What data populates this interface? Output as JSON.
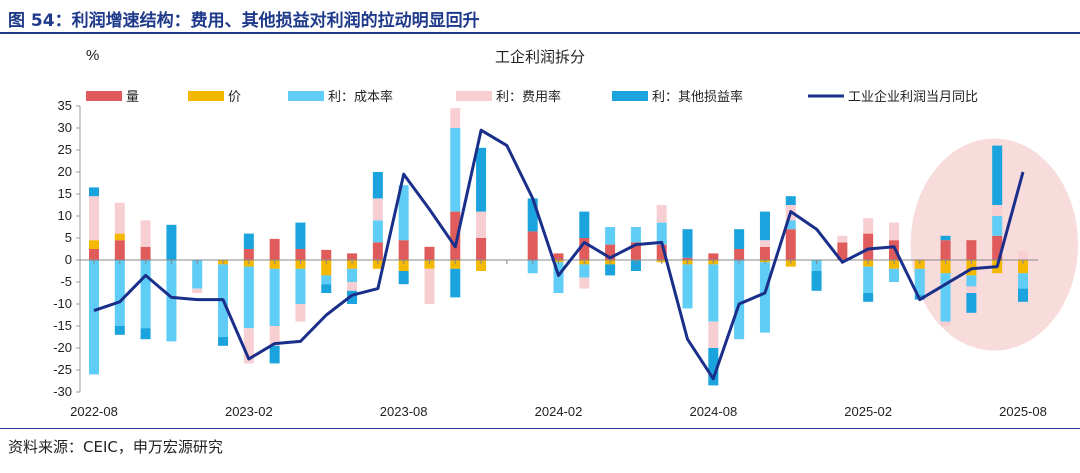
{
  "figure": {
    "title": "图 54：利润增速结构：费用、其他损益对利润的拉动明显回升",
    "source": "资料来源：CEIC，申万宏源研究"
  },
  "colors": {
    "volume": "#e05c5c",
    "price": "#f5b800",
    "cost_rate": "#5fcdf5",
    "expense_rate": "#f7cfd3",
    "other_income": "#1aa3dd",
    "total_line": "#1a2f8a",
    "highlight": "#f6d0d0"
  },
  "chart_data": {
    "type": "bar",
    "stacked": true,
    "title": "工企利润拆分",
    "ylabel": "%",
    "ylim": [
      -30,
      35
    ],
    "yticks": [
      35,
      30,
      25,
      20,
      15,
      10,
      5,
      0,
      -5,
      -10,
      -15,
      -20,
      -25,
      -30
    ],
    "categories": [
      "2022-08",
      "2022-09",
      "2022-10",
      "2022-11",
      "2022-12",
      "2023-01",
      "2023-02",
      "2023-03",
      "2023-04",
      "2023-05",
      "2023-06",
      "2023-07",
      "2023-08",
      "2023-09",
      "2023-10",
      "2023-11",
      "2023-12",
      "2024-01",
      "2024-02",
      "2024-03",
      "2024-04",
      "2024-05",
      "2024-06",
      "2024-07",
      "2024-08",
      "2024-09",
      "2024-10",
      "2024-11",
      "2024-12",
      "2025-01",
      "2025-02",
      "2025-03",
      "2025-04",
      "2025-05",
      "2025-06",
      "2025-07",
      "2025-08"
    ],
    "xtick_labels": [
      "2022-08",
      "2023-02",
      "2023-08",
      "2024-02",
      "2024-08",
      "2025-02",
      "2025-08"
    ],
    "legend_position": "top",
    "series": [
      {
        "name": "量",
        "color_key": "volume",
        "values": [
          2.5,
          4.5,
          3,
          0,
          0,
          0,
          2.5,
          4.8,
          2.5,
          2.3,
          1.5,
          4,
          4.5,
          3,
          11,
          5,
          0,
          6.5,
          1.5,
          5,
          3.5,
          4,
          3.5,
          0.5,
          1.5,
          2.5,
          3,
          7,
          0,
          4,
          6,
          4.5,
          0,
          4.5,
          4.5,
          5.5,
          0
        ]
      },
      {
        "name": "价",
        "color_key": "price",
        "values": [
          2,
          1.5,
          0,
          0,
          0,
          -1,
          -1.5,
          -2,
          -2,
          -3.5,
          -2,
          -2,
          -2.5,
          -2,
          -2,
          -2.5,
          0,
          0,
          -0.5,
          -1,
          -1,
          0,
          -0.5,
          -1,
          -1,
          0,
          -0.5,
          -1.5,
          0,
          0,
          -1.5,
          -2,
          -2,
          -3,
          -3.5,
          -3,
          -3
        ]
      },
      {
        "name": "利：成本率",
        "color_key": "cost_rate",
        "values": [
          -26,
          -15,
          -15.5,
          -18.5,
          -6.5,
          -16.5,
          -14,
          -13,
          -8,
          -2,
          -3,
          5,
          12.5,
          0,
          19,
          0,
          0,
          -3,
          -7,
          -3,
          4,
          3.5,
          5,
          -10,
          -13,
          -18,
          -16,
          2,
          -2.5,
          0,
          -6,
          -3,
          -6,
          -11,
          -2.5,
          4.5,
          -3.5
        ]
      },
      {
        "name": "利：费用率",
        "color_key": "expense_rate",
        "values": [
          10,
          7,
          6,
          0,
          -1,
          0,
          -8,
          -4.5,
          -4,
          0,
          -2,
          5,
          0,
          -8,
          4.5,
          6,
          0,
          0,
          0,
          -2.5,
          0,
          0,
          4,
          0,
          -6,
          0,
          1.5,
          3.5,
          0,
          1.5,
          3.5,
          4,
          0,
          -1,
          -1.5,
          2.5,
          2
        ]
      },
      {
        "name": "利：其他损益率",
        "color_key": "other_income",
        "values": [
          2,
          -2,
          -2.5,
          8,
          0,
          -2,
          3.5,
          -4,
          6,
          -2,
          -3,
          6,
          -3,
          0,
          -6.5,
          14.5,
          0,
          7.5,
          0,
          6,
          -2.5,
          -2.5,
          0,
          6.5,
          -8.5,
          4.5,
          6.5,
          2,
          -4.5,
          0,
          -2,
          0,
          -1,
          1,
          -4.5,
          13.5,
          -3
        ]
      }
    ],
    "line": {
      "name": "工业企业利润当月同比",
      "color_key": "total_line",
      "values": [
        -11.5,
        -9.5,
        -3.5,
        -8.5,
        -9,
        -9,
        -22.5,
        -19,
        -18.5,
        -12.5,
        -8,
        -6.5,
        19.5,
        11.5,
        3,
        29.5,
        26,
        14,
        -3.5,
        4,
        0.5,
        3.5,
        4,
        -18,
        -27,
        -10,
        -7.5,
        11,
        7,
        -0.5,
        2.5,
        3,
        -9,
        -5.5,
        -2,
        -1.5,
        20
      ]
    },
    "annotation": {
      "type": "highlight-ellipse",
      "around_categories": [
        "2025-05",
        "2025-08"
      ]
    }
  }
}
